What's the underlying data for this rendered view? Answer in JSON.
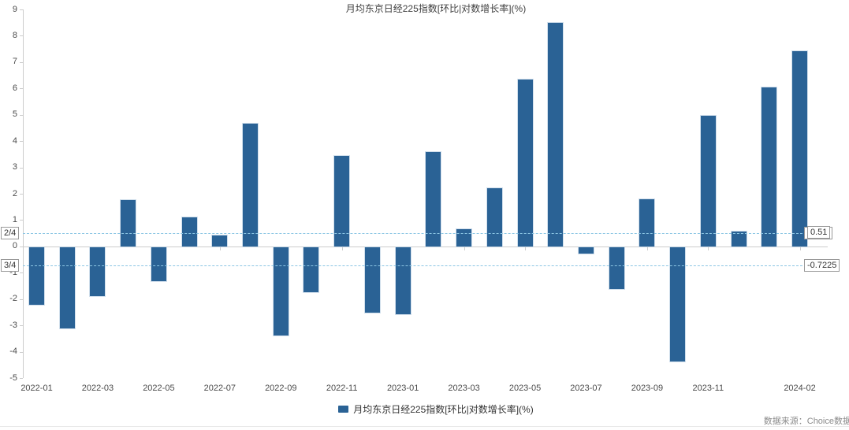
{
  "title": "月均东京日经225指数[环比|对数增长率](%)",
  "legend": {
    "label": "月均东京日经225指数[环比|对数增长率](%)"
  },
  "source": "数据来源：Choice数据",
  "colors": {
    "bar": "#2a6295",
    "reference_dash": "#8cc6e4",
    "axis": "#cccccc",
    "label_text": "#4a4a4a"
  },
  "y_axis": {
    "min": -5,
    "max": 9,
    "step": 1,
    "ticks": [
      9,
      8,
      7,
      6,
      5,
      4,
      3,
      2,
      1,
      0,
      -1,
      -2,
      -3,
      -4,
      -5
    ]
  },
  "x_axis": {
    "ticks": [
      {
        "index": 0,
        "label": "2022-01"
      },
      {
        "index": 2,
        "label": "2022-03"
      },
      {
        "index": 4,
        "label": "2022-05"
      },
      {
        "index": 6,
        "label": "2022-07"
      },
      {
        "index": 8,
        "label": "2022-09"
      },
      {
        "index": 10,
        "label": "2022-11"
      },
      {
        "index": 12,
        "label": "2023-01"
      },
      {
        "index": 14,
        "label": "2023-03"
      },
      {
        "index": 16,
        "label": "2023-05"
      },
      {
        "index": 18,
        "label": "2023-07"
      },
      {
        "index": 20,
        "label": "2023-09"
      },
      {
        "index": 22,
        "label": "2023-11"
      },
      {
        "index": 25,
        "label": "2024-02"
      }
    ]
  },
  "reference_lines": [
    {
      "left_label": "2/4",
      "value": 0.515,
      "right_labels": [
        "0.515",
        "0.51"
      ]
    },
    {
      "left_label": "3/4",
      "value": -0.7225,
      "right_labels": [
        "-0.7225"
      ]
    }
  ],
  "chart_data": {
    "type": "bar",
    "title": "月均东京日经225指数[环比|对数增长率](%)",
    "xlabel": "",
    "ylabel": "",
    "ylim": [
      -5,
      9
    ],
    "grid": false,
    "legend_position": "bottom",
    "series_name": "月均东京日经225指数[环比|对数增长率](%)",
    "categories": [
      "2022-01",
      "2022-02",
      "2022-03",
      "2022-04",
      "2022-05",
      "2022-06",
      "2022-07",
      "2022-08",
      "2022-09",
      "2022-10",
      "2022-11",
      "2022-12",
      "2023-01",
      "2023-02",
      "2023-03",
      "2023-04",
      "2023-05",
      "2023-06",
      "2023-07",
      "2023-08",
      "2023-09",
      "2023-10",
      "2023-11",
      "2023-12",
      "2024-01",
      "2024-02"
    ],
    "values": [
      -2.2,
      -3.1,
      -1.85,
      1.75,
      -1.3,
      1.1,
      0.4,
      4.65,
      -3.35,
      -1.7,
      3.45,
      -2.5,
      -2.55,
      3.6,
      0.65,
      2.2,
      6.35,
      8.5,
      -0.25,
      -1.6,
      1.8,
      -4.35,
      4.95,
      0.55,
      6.05,
      7.4
    ],
    "reference_lines": [
      {
        "label": "2/4",
        "value": 0.515,
        "shown_as": "0.51"
      },
      {
        "label": "3/4",
        "value": -0.7225,
        "shown_as": "-0.7225"
      }
    ]
  }
}
